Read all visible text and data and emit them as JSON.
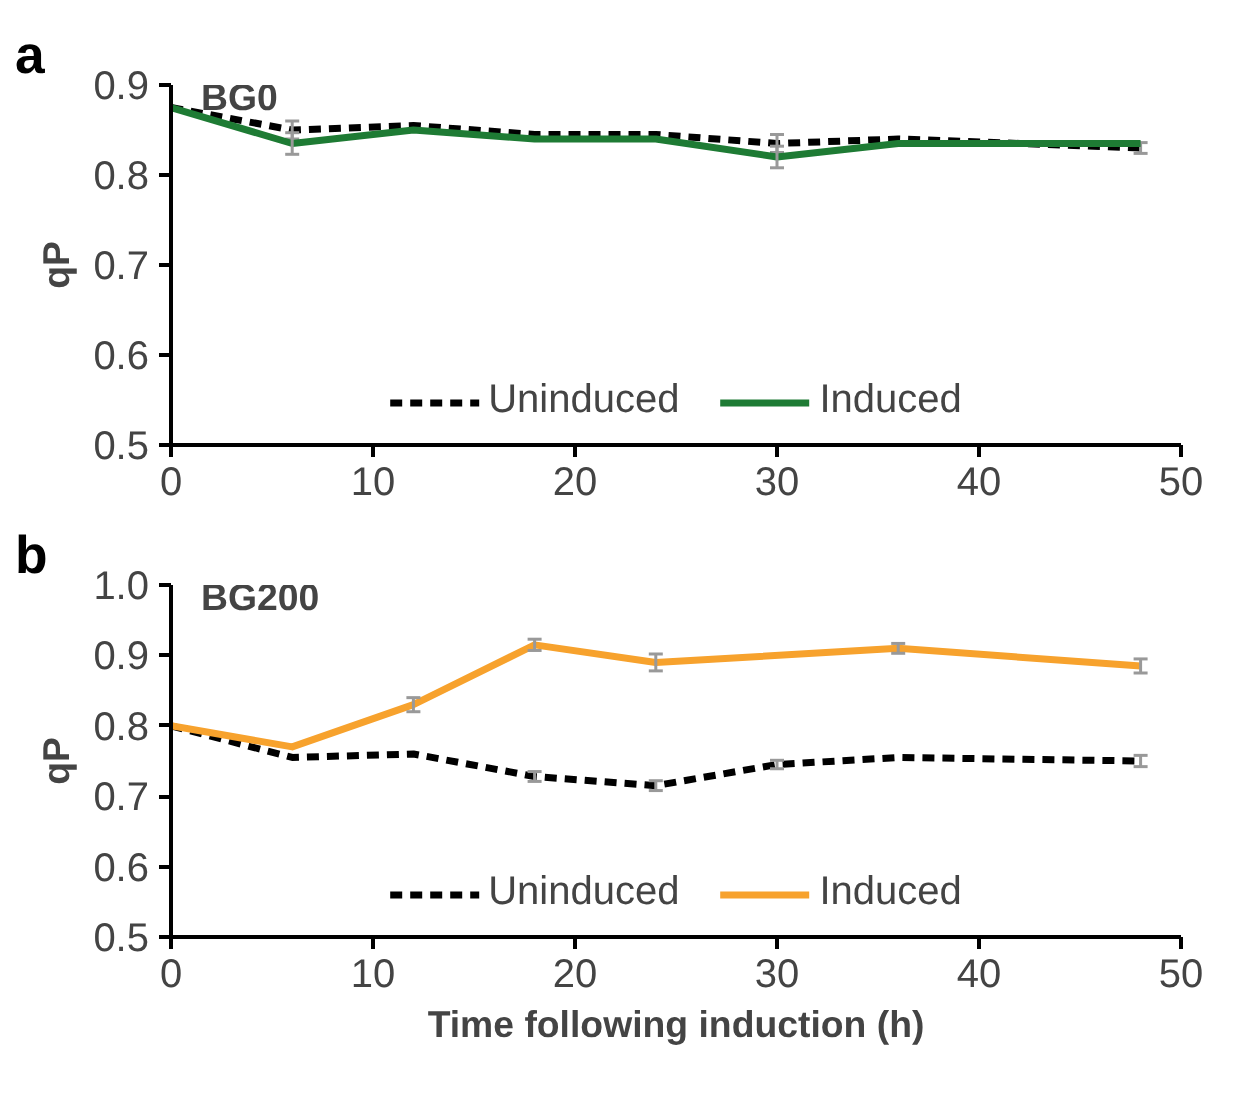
{
  "chart_data": [
    {
      "type": "line",
      "title": "BG0",
      "ylabel": "qP",
      "annotations": [
        "a"
      ],
      "xlim": [
        0,
        50
      ],
      "xticks": [
        0,
        10,
        20,
        30,
        40,
        50
      ],
      "ylim": [
        0.5,
        0.9
      ],
      "yticks": [
        0.5,
        0.6,
        0.7,
        0.8,
        0.9
      ],
      "grid": false,
      "legend": "bottom",
      "series": [
        {
          "name": "Uninduced",
          "color": "#000000",
          "line_style": "dashed",
          "x": [
            0,
            6,
            12,
            18,
            24,
            30,
            36,
            48
          ],
          "values": [
            0.875,
            0.85,
            0.855,
            0.845,
            0.845,
            0.835,
            0.84,
            0.83
          ],
          "errors": [
            null,
            0.01,
            null,
            null,
            null,
            0.01,
            null,
            0.006
          ]
        },
        {
          "name": "Induced",
          "color": "#1e7b34",
          "line_style": "solid",
          "x": [
            0,
            6,
            12,
            18,
            24,
            30,
            36,
            48
          ],
          "values": [
            0.875,
            0.835,
            0.85,
            0.84,
            0.84,
            0.82,
            0.835,
            0.835
          ],
          "errors": [
            null,
            0.012,
            null,
            null,
            null,
            0.012,
            null,
            null
          ]
        }
      ]
    },
    {
      "type": "line",
      "title": "BG200",
      "xlabel": "Time following induction (h)",
      "ylabel": "qP",
      "annotations": [
        "b"
      ],
      "xlim": [
        0,
        50
      ],
      "xticks": [
        0,
        10,
        20,
        30,
        40,
        50
      ],
      "ylim": [
        0.5,
        1.0
      ],
      "yticks": [
        0.5,
        0.6,
        0.7,
        0.8,
        0.9,
        {
          "value": 1.0,
          "label": "1.0"
        }
      ],
      "grid": false,
      "legend": "bottom",
      "series": [
        {
          "name": "Uninduced",
          "color": "#000000",
          "line_style": "dashed",
          "x": [
            0,
            6,
            12,
            18,
            24,
            30,
            36,
            48
          ],
          "values": [
            0.8,
            0.755,
            0.76,
            0.728,
            0.715,
            0.745,
            0.755,
            0.75
          ],
          "errors": [
            null,
            null,
            null,
            0.007,
            0.007,
            0.006,
            null,
            0.008
          ]
        },
        {
          "name": "Induced",
          "color": "#f7a22d",
          "line_style": "solid",
          "x": [
            0,
            6,
            12,
            18,
            24,
            36,
            48
          ],
          "values": [
            0.8,
            0.77,
            0.83,
            0.915,
            0.89,
            0.91,
            0.885
          ],
          "errors": [
            null,
            null,
            0.01,
            0.008,
            0.012,
            0.007,
            0.01
          ]
        }
      ]
    }
  ]
}
